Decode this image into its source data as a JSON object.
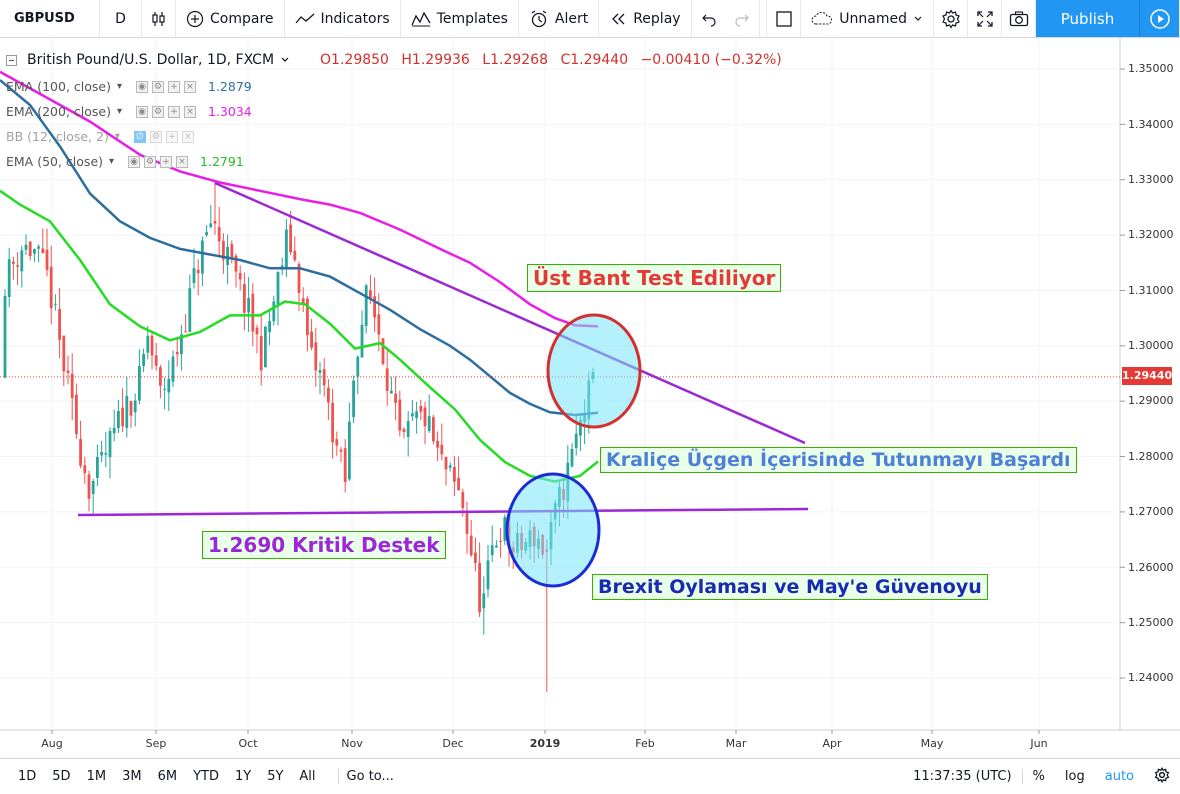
{
  "toolbar": {
    "symbol": "GBPUSD",
    "interval": "D",
    "compare": "Compare",
    "indicators": "Indicators",
    "templates": "Templates",
    "alert": "Alert",
    "replay": "Replay",
    "layout_name": "Unnamed",
    "publish": "Publish"
  },
  "legend": {
    "title": "British Pound/U.S. Dollar, 1D, FXCM",
    "open": "O1.29850",
    "high": "H1.29936",
    "low": "L1.29268",
    "close": "C1.29440",
    "change": "−0.00410 (−0.32%)",
    "indicators": [
      {
        "name": "EMA (100, close)",
        "value": "1.2879",
        "color": "#2e6e9e"
      },
      {
        "name": "EMA (200, close)",
        "value": "1.3034",
        "color": "#e91ee6"
      },
      {
        "name": "BB (12, close, 2)",
        "value": "",
        "color": "#9e9e9e"
      },
      {
        "name": "EMA (50, close)",
        "value": "1.2791",
        "color": "#22dd22"
      }
    ]
  },
  "annotations": {
    "upper_band": "Üst Bant Test Ediliyor",
    "triangle": "Kraliçe Üçgen İçerisinde Tutunmayı Başardı",
    "support": "1.2690 Kritik Destek",
    "brexit": "Brexit Oylaması ve May'e Güvenoyu"
  },
  "price_axis": {
    "labels": [
      "1.35000",
      "1.34000",
      "1.33000",
      "1.32000",
      "1.31000",
      "1.30000",
      "1.29000",
      "1.28000",
      "1.27000",
      "1.26000",
      "1.25000",
      "1.24000"
    ],
    "current_price": "1.29440"
  },
  "time_axis": {
    "labels": [
      "Aug",
      "Sep",
      "Oct",
      "Nov",
      "Dec",
      "2019",
      "Feb",
      "Mar",
      "Apr",
      "May",
      "Jun"
    ]
  },
  "bottom_bar": {
    "ranges": [
      "1D",
      "5D",
      "1M",
      "3M",
      "6M",
      "YTD",
      "1Y",
      "5Y",
      "All"
    ],
    "goto": "Go to...",
    "clock": "11:37:35 (UTC)",
    "percent": "%",
    "log": "log",
    "auto": "auto"
  },
  "chart_data": {
    "type": "candlestick",
    "symbol": "GBPUSD",
    "interval": "1D",
    "ylim": [
      1.232,
      1.355
    ],
    "x_axis_labels": [
      "Aug",
      "Sep",
      "Oct",
      "Nov",
      "Dec",
      "2019",
      "Feb",
      "Mar",
      "Apr",
      "May",
      "Jun"
    ],
    "last_close": 1.2944,
    "ema_values": {
      "EMA 100": 1.2879,
      "EMA 200": 1.3034,
      "EMA 50": 1.2791
    },
    "horizontal_support": 1.269,
    "colors": {
      "up": "#26a69a",
      "down": "#ef5350",
      "ema100": "#2e6e9e",
      "ema200": "#e91ee6",
      "ema50": "#22dd22",
      "trend": "#9b27d6"
    }
  }
}
